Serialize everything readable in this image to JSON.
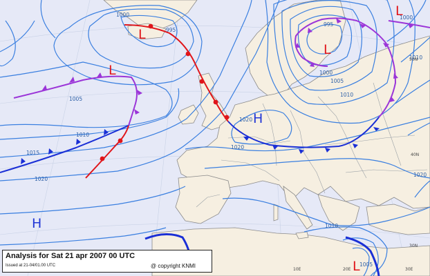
{
  "caption": {
    "title": "Analysis for Sat 21 apr 2007 00 UTC",
    "issued": "Issued at 21-04/01.00 UTC",
    "copyright": "@ copyright KNMI"
  },
  "pressure_centers": [
    {
      "type": "L",
      "id": "low-north-atlantic-east"
    },
    {
      "type": "L",
      "id": "low-north-atlantic-west"
    },
    {
      "type": "L",
      "id": "low-scandinavia"
    },
    {
      "type": "L",
      "id": "low-northeast"
    },
    {
      "type": "L",
      "id": "low-mediterranean"
    },
    {
      "type": "H",
      "id": "high-north-sea"
    },
    {
      "type": "H",
      "id": "high-azores"
    }
  ],
  "isobar_labels": [
    "1000",
    "995",
    "1005",
    "1010",
    "1015",
    "1020",
    "1020",
    "995",
    "1000",
    "1005",
    "1010",
    "1020",
    "1010",
    "1005",
    "1020",
    "1010",
    "1000"
  ],
  "grid_labels": [
    "50N",
    "40N",
    "30N",
    "10E",
    "20E",
    "30E"
  ],
  "colors": {
    "sea": "#e6e9f7",
    "land": "#f6efe1",
    "isobar": "#3a7fe0",
    "cold_front": "#1a2fd6",
    "warm_front": "#e0151a",
    "occluded_front": "#9b35d8",
    "low": "#e0151a",
    "high": "#2136d6"
  }
}
